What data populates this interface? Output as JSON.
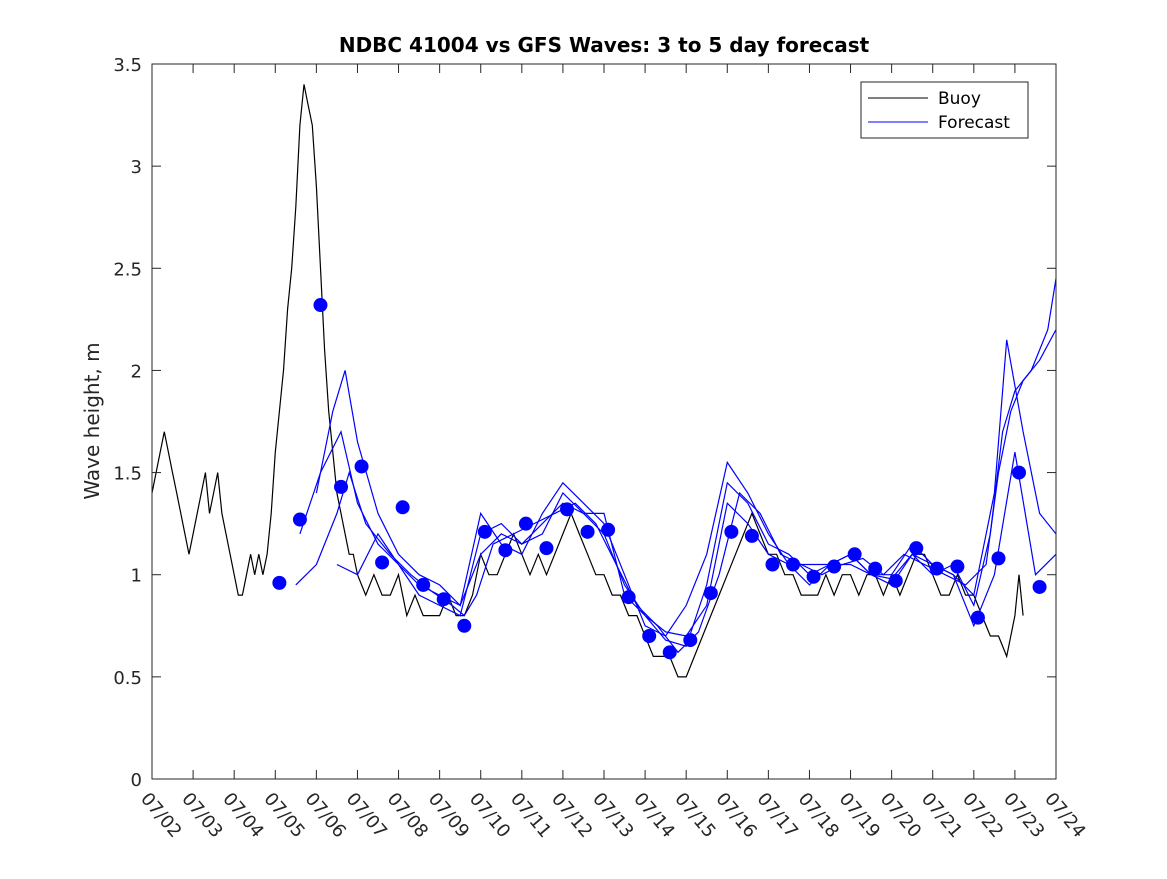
{
  "colors": {
    "buoy": "#000000",
    "forecast": "#0000ff",
    "axis": "#262626",
    "background": "#ffffff"
  },
  "chart_data": {
    "type": "line",
    "title": "NDBC 41004 vs GFS Waves: 3 to 5 day forecast",
    "xlabel": "",
    "ylabel": "Wave height, m",
    "xlim": [
      2,
      24
    ],
    "ylim": [
      0,
      3.5
    ],
    "yticks": [
      0,
      0.5,
      1,
      1.5,
      2,
      2.5,
      3,
      3.5
    ],
    "ytick_labels": [
      "0",
      "0.5",
      "1",
      "1.5",
      "2",
      "2.5",
      "3",
      "3.5"
    ],
    "xticks": [
      2,
      3,
      4,
      5,
      6,
      7,
      8,
      9,
      10,
      11,
      12,
      13,
      14,
      15,
      16,
      17,
      18,
      19,
      20,
      21,
      22,
      23,
      24
    ],
    "xtick_labels": [
      "07/02",
      "07/03",
      "07/04",
      "07/05",
      "07/06",
      "07/07",
      "07/08",
      "07/09",
      "07/10",
      "07/11",
      "07/12",
      "07/13",
      "07/14",
      "07/15",
      "07/16",
      "07/17",
      "07/18",
      "07/19",
      "07/20",
      "07/21",
      "07/22",
      "07/23",
      "07/24"
    ],
    "grid": false,
    "legend": {
      "position": "top-right",
      "entries": [
        "Buoy",
        "Forecast"
      ]
    },
    "series": [
      {
        "name": "Buoy",
        "style": "line",
        "x": [
          2.0,
          2.1,
          2.2,
          2.3,
          2.4,
          2.5,
          2.6,
          2.7,
          2.8,
          2.9,
          3.0,
          3.1,
          3.2,
          3.3,
          3.4,
          3.5,
          3.6,
          3.7,
          3.8,
          3.9,
          4.0,
          4.1,
          4.2,
          4.3,
          4.4,
          4.5,
          4.6,
          4.7,
          4.8,
          4.9,
          5.0,
          5.1,
          5.2,
          5.3,
          5.4,
          5.5,
          5.6,
          5.7,
          5.8,
          5.9,
          6.0,
          6.1,
          6.2,
          6.3,
          6.4,
          6.5,
          6.6,
          6.7,
          6.8,
          6.9,
          7.0,
          7.2,
          7.4,
          7.6,
          7.8,
          8.0,
          8.2,
          8.4,
          8.6,
          8.8,
          9.0,
          9.2,
          9.4,
          9.6,
          9.8,
          10.0,
          10.2,
          10.4,
          10.6,
          10.8,
          11.0,
          11.2,
          11.4,
          11.6,
          11.8,
          12.0,
          12.2,
          12.4,
          12.6,
          12.8,
          13.0,
          13.2,
          13.4,
          13.6,
          13.8,
          14.0,
          14.2,
          14.4,
          14.6,
          14.8,
          15.0,
          15.2,
          15.4,
          15.6,
          15.8,
          16.0,
          16.2,
          16.4,
          16.6,
          16.8,
          17.0,
          17.2,
          17.4,
          17.6,
          17.8,
          18.0,
          18.2,
          18.4,
          18.6,
          18.8,
          19.0,
          19.2,
          19.4,
          19.6,
          19.8,
          20.0,
          20.2,
          20.4,
          20.6,
          20.8,
          21.0,
          21.2,
          21.4,
          21.6,
          21.8,
          22.0,
          22.2,
          22.4,
          22.6,
          22.8,
          23.0,
          23.1,
          23.2
        ],
        "y": [
          1.4,
          1.5,
          1.6,
          1.7,
          1.6,
          1.5,
          1.4,
          1.3,
          1.2,
          1.1,
          1.2,
          1.3,
          1.4,
          1.5,
          1.3,
          1.4,
          1.5,
          1.3,
          1.2,
          1.1,
          1.0,
          0.9,
          0.9,
          1.0,
          1.1,
          1.0,
          1.1,
          1.0,
          1.1,
          1.3,
          1.6,
          1.8,
          2.0,
          2.3,
          2.5,
          2.8,
          3.2,
          3.4,
          3.3,
          3.2,
          2.9,
          2.5,
          2.1,
          1.8,
          1.6,
          1.4,
          1.3,
          1.2,
          1.1,
          1.1,
          1.0,
          0.9,
          1.0,
          0.9,
          0.9,
          1.0,
          0.8,
          0.9,
          0.8,
          0.8,
          0.8,
          0.9,
          0.8,
          0.8,
          0.9,
          1.1,
          1.0,
          1.0,
          1.1,
          1.2,
          1.1,
          1.0,
          1.1,
          1.0,
          1.1,
          1.2,
          1.3,
          1.2,
          1.1,
          1.0,
          1.0,
          0.9,
          0.9,
          0.8,
          0.8,
          0.7,
          0.6,
          0.6,
          0.6,
          0.5,
          0.5,
          0.6,
          0.7,
          0.8,
          0.9,
          1.0,
          1.1,
          1.2,
          1.3,
          1.2,
          1.1,
          1.1,
          1.0,
          1.0,
          0.9,
          0.9,
          0.9,
          1.0,
          0.9,
          1.0,
          1.0,
          0.9,
          1.0,
          1.0,
          0.9,
          1.0,
          0.9,
          1.0,
          1.1,
          1.1,
          1.0,
          0.9,
          0.9,
          1.0,
          0.9,
          0.9,
          0.8,
          0.7,
          0.7,
          0.6,
          0.8,
          1.0,
          0.8
        ]
      },
      {
        "name": "Forecast",
        "style": "markers",
        "x": [
          5.1,
          5.6,
          6.1,
          6.6,
          7.1,
          7.6,
          8.1,
          8.6,
          9.1,
          9.6,
          10.1,
          10.6,
          11.1,
          11.6,
          12.1,
          12.6,
          13.1,
          13.6,
          14.1,
          14.6,
          15.1,
          15.6,
          16.1,
          16.6,
          17.1,
          17.6,
          18.1,
          18.6,
          19.1,
          19.6,
          20.1,
          20.6,
          21.1,
          21.6,
          22.1,
          22.6,
          23.1,
          23.6
        ],
        "y": [
          0.96,
          1.27,
          2.32,
          1.43,
          1.53,
          1.06,
          1.33,
          0.95,
          0.88,
          0.75,
          1.21,
          1.12,
          1.25,
          1.13,
          1.32,
          1.21,
          1.22,
          0.89,
          0.7,
          0.62,
          0.68,
          0.91,
          1.21,
          1.19,
          1.05,
          1.05,
          0.99,
          1.04,
          1.1,
          1.03,
          0.97,
          1.13,
          1.03,
          1.04,
          0.79,
          1.08,
          1.5,
          0.94
        ]
      },
      {
        "style": "line",
        "x": [
          5.5,
          6.0,
          6.5,
          6.8,
          7.2,
          7.8,
          8.3,
          8.8,
          9.3,
          9.6,
          9.9,
          10.3,
          10.8,
          11.3,
          11.8,
          12.3,
          12.8,
          13.3,
          13.8,
          14.3,
          14.8,
          15.3,
          15.8,
          16.3,
          16.8,
          17.3,
          17.8,
          18.3,
          18.8,
          19.3,
          19.8,
          20.3,
          20.8,
          21.3,
          21.8,
          22.3,
          22.6,
          22.9,
          23.2,
          23.6,
          24.0
        ],
        "y": [
          0.95,
          1.05,
          1.3,
          1.5,
          1.25,
          1.1,
          1.0,
          0.92,
          0.85,
          0.8,
          0.9,
          1.15,
          1.2,
          1.25,
          1.3,
          1.35,
          1.25,
          1.05,
          0.85,
          0.75,
          0.62,
          0.72,
          1.0,
          1.4,
          1.3,
          1.1,
          1.05,
          1.0,
          1.05,
          1.08,
          1.0,
          1.1,
          1.05,
          1.0,
          0.95,
          1.05,
          1.5,
          1.8,
          1.95,
          2.05,
          2.2
        ]
      },
      {
        "style": "line",
        "x": [
          5.6,
          6.1,
          6.6,
          7.0,
          7.5,
          8.0,
          8.5,
          9.0,
          9.5,
          10.0,
          10.5,
          11.0,
          11.5,
          12.0,
          12.5,
          13.0,
          13.5,
          14.0,
          14.5,
          15.0,
          15.5,
          16.0,
          16.5,
          17.0,
          17.5,
          18.0,
          18.5,
          19.0,
          19.5,
          20.0,
          20.5,
          21.0,
          21.5,
          22.0,
          22.4,
          22.7,
          23.0,
          23.4,
          23.8,
          24.0
        ],
        "y": [
          1.2,
          1.5,
          1.7,
          1.35,
          1.15,
          1.05,
          0.95,
          0.9,
          0.85,
          1.1,
          1.2,
          1.15,
          1.2,
          1.4,
          1.3,
          1.2,
          0.95,
          0.8,
          0.68,
          0.65,
          0.95,
          1.45,
          1.35,
          1.15,
          1.1,
          1.0,
          1.05,
          1.1,
          1.0,
          0.98,
          1.1,
          1.0,
          1.05,
          0.85,
          1.2,
          1.7,
          1.9,
          2.0,
          2.2,
          2.45
        ]
      },
      {
        "style": "line",
        "x": [
          6.0,
          6.4,
          6.7,
          7.0,
          7.5,
          8.0,
          8.5,
          9.0,
          9.5,
          10.0,
          10.5,
          11.0,
          11.5,
          12.0,
          12.5,
          13.0,
          13.5,
          14.0,
          14.5,
          15.0,
          15.5,
          16.0,
          16.5,
          17.0,
          17.5,
          18.0,
          18.5,
          19.0,
          19.5,
          20.0,
          20.5,
          21.0,
          21.5,
          22.0,
          22.5,
          22.8,
          23.2,
          23.6,
          24.0
        ],
        "y": [
          1.4,
          1.8,
          2.0,
          1.65,
          1.3,
          1.1,
          1.0,
          0.95,
          0.85,
          1.3,
          1.15,
          1.1,
          1.3,
          1.45,
          1.35,
          1.25,
          1.0,
          0.75,
          0.7,
          0.85,
          1.1,
          1.55,
          1.4,
          1.2,
          1.05,
          1.05,
          1.05,
          1.1,
          1.0,
          1.0,
          1.15,
          1.05,
          1.0,
          0.9,
          1.4,
          2.15,
          1.7,
          1.3,
          1.2
        ]
      },
      {
        "style": "line",
        "x": [
          6.5,
          7.0,
          7.5,
          8.0,
          8.5,
          9.0,
          9.5,
          10.0,
          10.5,
          11.0,
          11.5,
          12.0,
          12.5,
          13.0,
          13.5,
          14.0,
          14.5,
          15.0,
          15.5,
          16.0,
          16.5,
          17.0,
          17.5,
          18.0,
          18.5,
          19.0,
          19.5,
          20.0,
          20.5,
          21.0,
          21.5,
          22.0,
          22.5,
          23.0,
          23.5,
          24.0
        ],
        "y": [
          1.05,
          1.0,
          1.2,
          1.05,
          0.9,
          0.85,
          0.8,
          1.2,
          1.25,
          1.15,
          1.25,
          1.35,
          1.3,
          1.3,
          0.9,
          0.8,
          0.72,
          0.7,
          0.85,
          1.35,
          1.25,
          1.1,
          1.05,
          0.95,
          1.05,
          1.05,
          1.0,
          0.95,
          1.1,
          1.05,
          1.0,
          0.75,
          1.0,
          1.6,
          1.0,
          1.1
        ]
      }
    ]
  }
}
